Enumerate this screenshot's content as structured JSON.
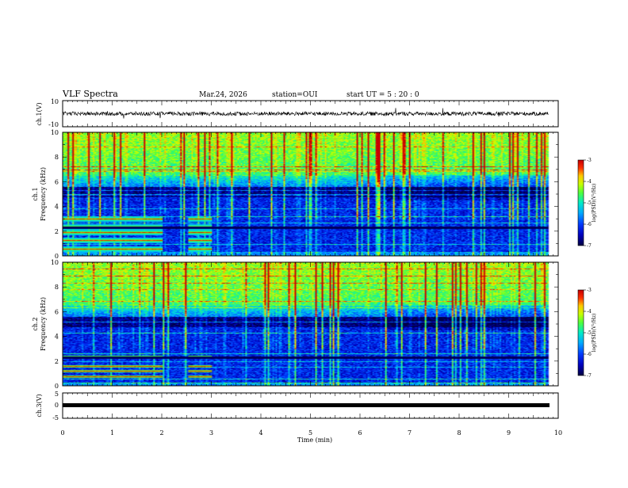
{
  "header": {
    "title": "VLF Spectra",
    "date": "Mar.24, 2026",
    "station": "station=OUI",
    "start": "start  UT  =   5  : 20 : 0"
  },
  "colors": {
    "background": "#ffffff",
    "axes": "#000000",
    "colormap": [
      "#000060",
      "#0000b0",
      "#0030ff",
      "#00a0ff",
      "#00e8c8",
      "#40ff40",
      "#c8ff00",
      "#ffd000",
      "#ff4000",
      "#d00000",
      "#ffffff"
    ]
  },
  "chart_data": [
    {
      "type": "line",
      "name": "ch1-waveform",
      "ylabel": "ch.1(V)",
      "ylim": [
        -10,
        10
      ],
      "yticks": [
        "10",
        "-10"
      ],
      "description_values": {
        "mean": 0,
        "approx_amplitude": 1.5
      },
      "xlim": [
        0,
        10
      ]
    },
    {
      "type": "heatmap",
      "name": "ch1-spectrogram",
      "ylabel": "ch.1\nFrequency (kHz)",
      "ylim": [
        0,
        10
      ],
      "yticks": [
        "0",
        "2",
        "4",
        "6",
        "8",
        "10"
      ],
      "xlim": [
        0,
        10
      ],
      "colorbar": {
        "label": "log(PSD)(V²/Hz)",
        "range": [
          -7,
          -3
        ],
        "ticks": [
          "-3",
          "-4",
          "-5",
          "-6",
          "-7"
        ]
      },
      "features": {
        "bright_band_kHz": [
          6.5,
          10
        ],
        "dark_band_kHz": [
          4.8,
          5.6
        ],
        "signal_lines_kHz": [
          0.6,
          1.3,
          1.9,
          2.4,
          3.0
        ],
        "signal_end_min": 2.0,
        "secondary_signal_min": [
          2.5,
          3.0
        ],
        "data_end_min": 9.8
      }
    },
    {
      "type": "heatmap",
      "name": "ch2-spectrogram",
      "ylabel": "ch.2\nFrequency (kHz)",
      "ylim": [
        0,
        10
      ],
      "yticks": [
        "0",
        "2",
        "4",
        "6",
        "8",
        "10"
      ],
      "xlim": [
        0,
        10
      ],
      "colorbar": {
        "label": "log(PSD)(V²/Hz)",
        "range": [
          -7,
          -3
        ],
        "ticks": [
          "-3",
          "-4",
          "-5",
          "-6",
          "-7"
        ]
      },
      "features": {
        "bright_band_kHz": [
          6.5,
          10
        ],
        "dark_band_kHz": [
          4.8,
          5.6
        ],
        "signal_lines_kHz": [
          0.8,
          1.2,
          1.6,
          2.4
        ],
        "signal_end_min": 2.0,
        "secondary_signal_min": [
          2.5,
          3.0
        ],
        "data_end_min": 9.8
      }
    },
    {
      "type": "line",
      "name": "ch3-waveform",
      "ylabel": "ch.3(V)",
      "ylim": [
        -5,
        5
      ],
      "yticks": [
        "5",
        "0",
        "-5"
      ],
      "description_values": {
        "mean": -0.5
      },
      "xlim": [
        0,
        10
      ]
    }
  ],
  "xaxis": {
    "label": "Time  (min)",
    "ticks": [
      "0",
      "1",
      "2",
      "3",
      "4",
      "5",
      "6",
      "7",
      "8",
      "9",
      "10"
    ]
  }
}
